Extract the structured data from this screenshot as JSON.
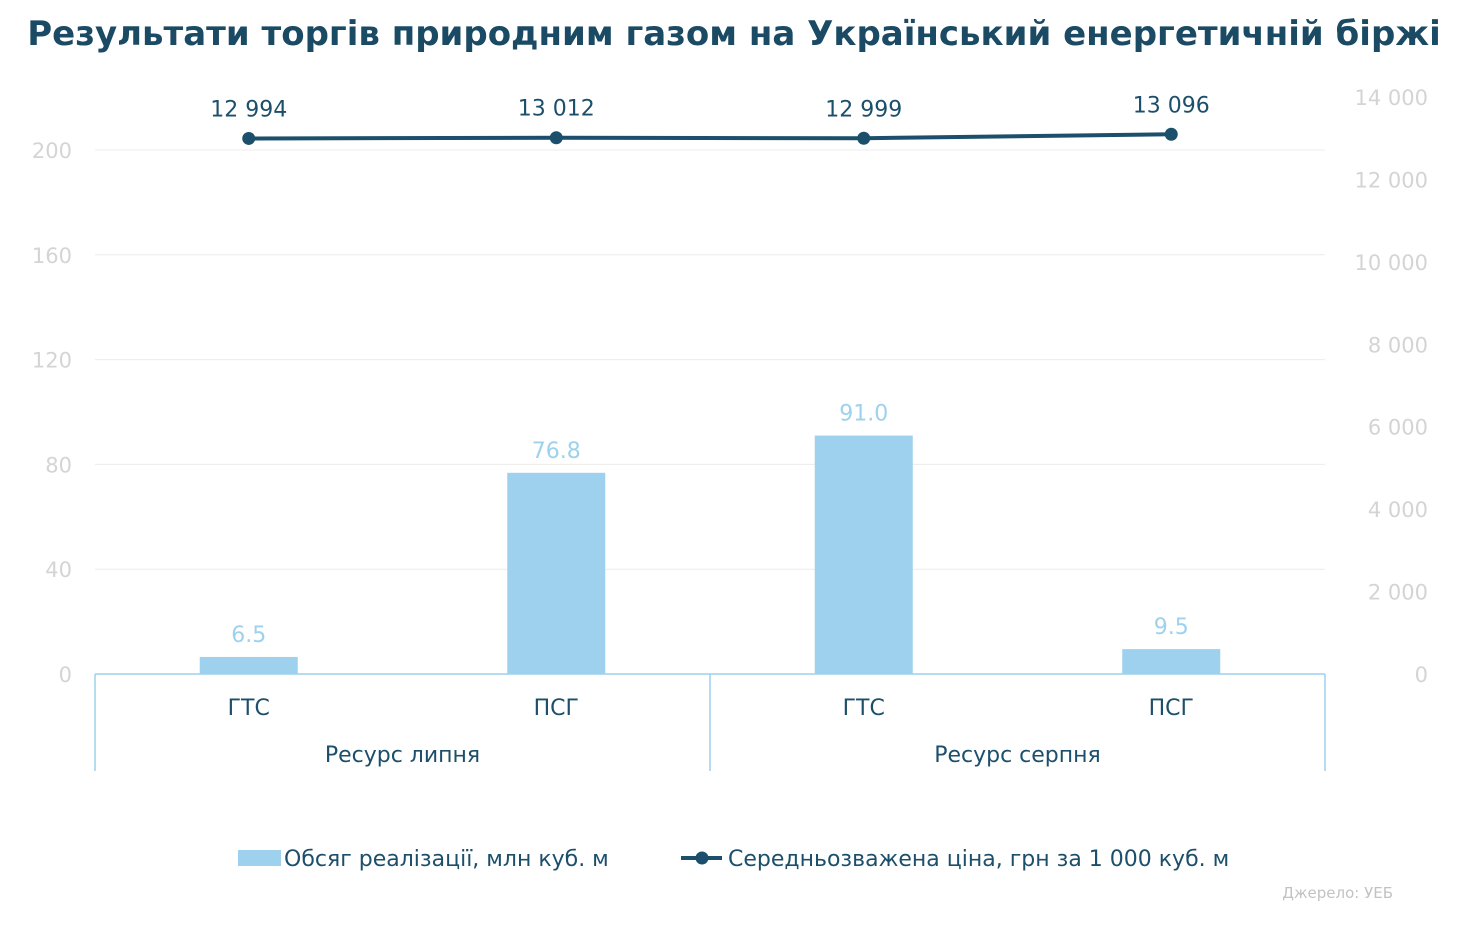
{
  "chart_data": {
    "type": "bar+line",
    "title": "Результати торгів природним газом на Український енергетичній біржі",
    "categories": [
      "ГТС",
      "ПСГ",
      "ГТС",
      "ПСГ"
    ],
    "groups": [
      {
        "label": "Ресурс липня",
        "span": [
          0,
          1
        ]
      },
      {
        "label": "Ресурс серпня",
        "span": [
          2,
          3
        ]
      }
    ],
    "series": [
      {
        "name": "Обсяг реалізації, млн куб. м",
        "type": "bar",
        "axis": "left",
        "values": [
          6.5,
          76.8,
          91.0,
          9.5
        ],
        "labels": [
          "6.5",
          "76.8",
          "91.0",
          "9.5"
        ],
        "color": "#9dd1ee",
        "label_color": "#9dd1ee"
      },
      {
        "name": "Середньозважена ціна, грн за 1 000 куб. м",
        "type": "line",
        "axis": "right",
        "values": [
          12994,
          13012,
          12999,
          13096
        ],
        "labels": [
          "12 994",
          "13 012",
          "12 999",
          "13 096"
        ],
        "color": "#1c4f6b"
      }
    ],
    "y_left": {
      "min": 0,
      "max": 200,
      "ticks": [
        0,
        40,
        80,
        120,
        160,
        200
      ],
      "tick_labels": [
        "0",
        "40",
        "80",
        "120",
        "160",
        "200"
      ]
    },
    "y_right": {
      "min": 0,
      "max": 14000,
      "ticks": [
        0,
        2000,
        4000,
        6000,
        8000,
        10000,
        12000,
        14000
      ],
      "tick_labels": [
        "0",
        "2 000",
        "4 000",
        "6 000",
        "8 000",
        "10 000",
        "12 000",
        "14 000"
      ]
    },
    "grid": true,
    "legend_position": "bottom",
    "source": "Джерело: УЕБ"
  },
  "colors": {
    "title": "#1a4a64",
    "axis_text": "#d4d4d4",
    "category_text": "#1c4f6b",
    "grid": "#ececec",
    "axis_line": "#9dd1ee"
  }
}
